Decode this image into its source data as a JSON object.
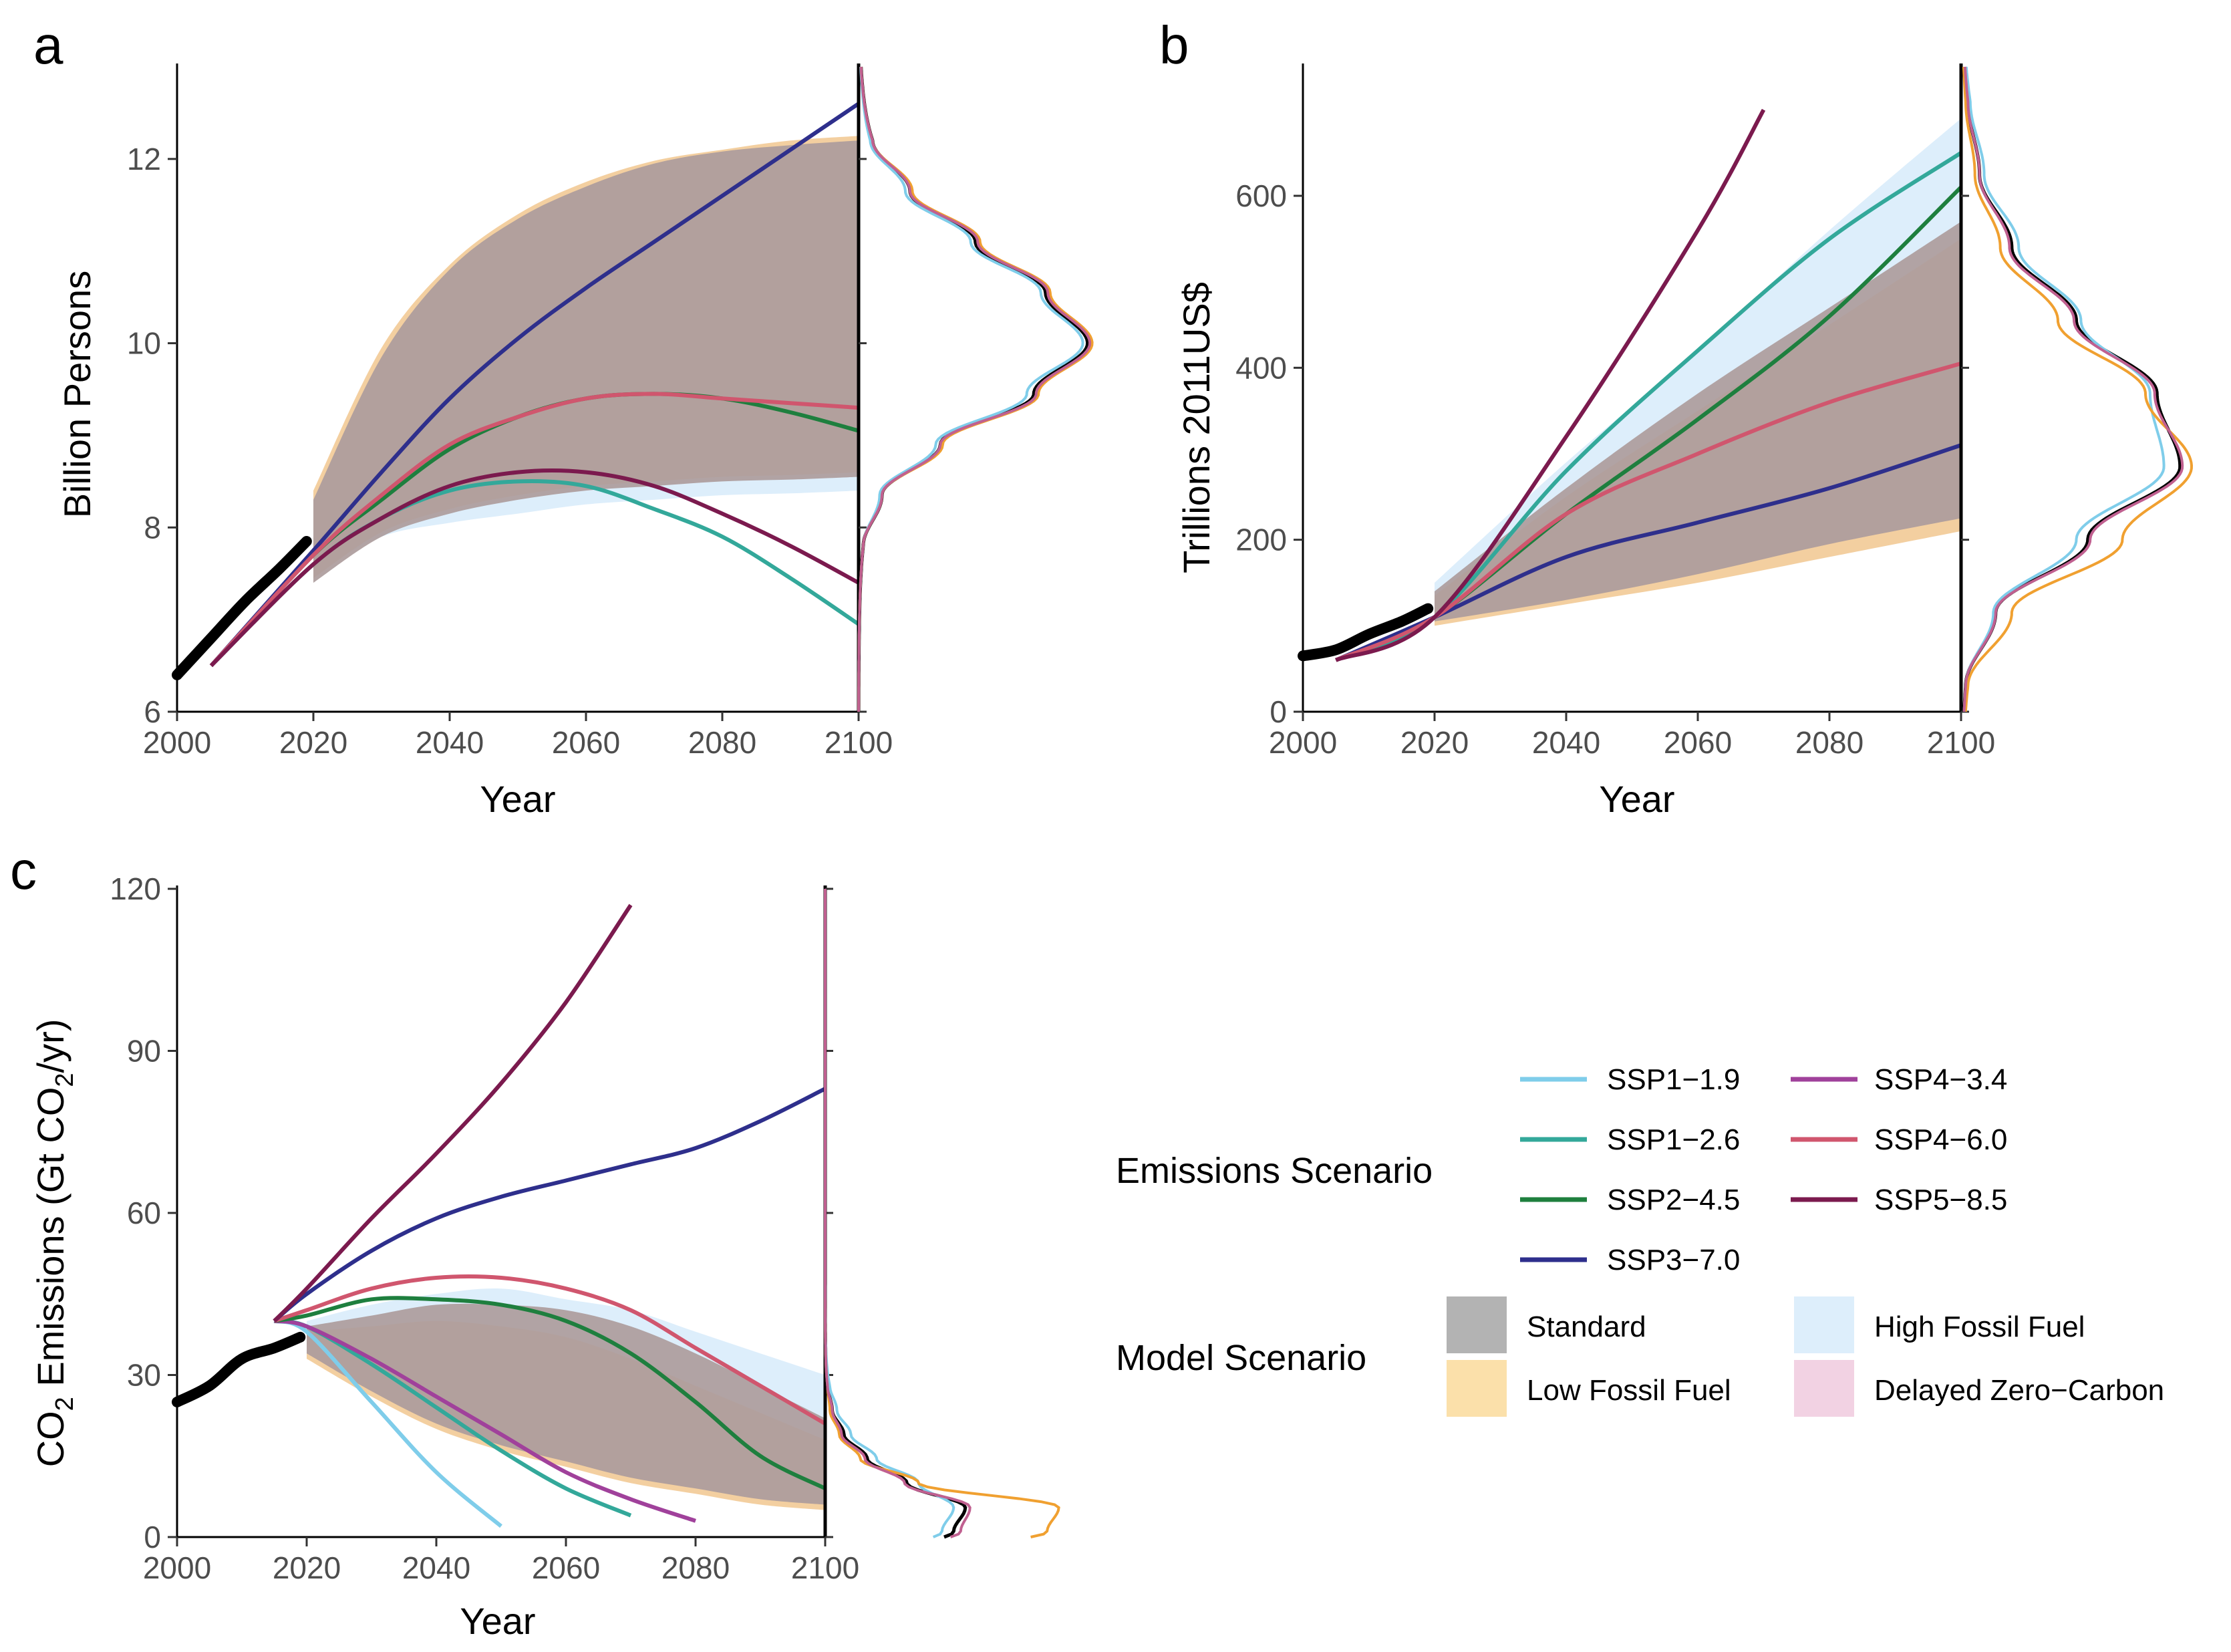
{
  "legend": {
    "emissions_title": "Emissions Scenario",
    "model_title": "Model Scenario",
    "ssp": [
      {
        "name": "SSP1−1.9",
        "color": "#7fcdea"
      },
      {
        "name": "SSP1−2.6",
        "color": "#33a89a"
      },
      {
        "name": "SSP2−4.5",
        "color": "#1e7f3e"
      },
      {
        "name": "SSP3−7.0",
        "color": "#2e2f8c"
      },
      {
        "name": "SSP4−3.4",
        "color": "#a0419b"
      },
      {
        "name": "SSP4−6.0",
        "color": "#d0566e"
      },
      {
        "name": "SSP5−8.5",
        "color": "#7b1a4e"
      }
    ],
    "model": [
      {
        "name": "Standard",
        "color": "#b3b3b3"
      },
      {
        "name": "High Fossil Fuel",
        "color": "#ddeefb"
      },
      {
        "name": "Low Fossil Fuel",
        "color": "#fbe0aa"
      },
      {
        "name": "Delayed Zero−Carbon",
        "color": "#f2d2e3"
      }
    ]
  },
  "chart_data": [
    {
      "panel": "a",
      "type": "line",
      "xlabel": "Year",
      "ylabel": "Billion Persons",
      "xlim": [
        2000,
        2100
      ],
      "ylim": [
        6,
        13
      ],
      "xticks": [
        "2000",
        "2020",
        "2040",
        "2060",
        "2080",
        "2100"
      ],
      "yticks": [
        "6",
        "8",
        "10",
        "12"
      ],
      "historical": {
        "x": [
          2000,
          2005,
          2010,
          2015,
          2019
        ],
        "y": [
          6.4,
          6.8,
          7.2,
          7.55,
          7.85
        ]
      },
      "bands": [
        {
          "scenario": "High Fossil Fuel",
          "color": "#ddeefb",
          "x": [
            2020,
            2030,
            2040,
            2050,
            2060,
            2070,
            2080,
            2090,
            2100
          ],
          "lower": [
            7.5,
            7.9,
            8.05,
            8.15,
            8.25,
            8.3,
            8.35,
            8.37,
            8.4
          ],
          "upper": [
            8.2,
            9.8,
            10.75,
            11.3,
            11.65,
            11.9,
            12.05,
            12.15,
            12.2
          ]
        },
        {
          "scenario": "Low Fossil Fuel",
          "color": "#f3cfa0",
          "x": [
            2020,
            2030,
            2040,
            2050,
            2060,
            2070,
            2080,
            2090,
            2100
          ],
          "lower": [
            7.45,
            7.95,
            8.2,
            8.35,
            8.45,
            8.5,
            8.55,
            8.57,
            8.6
          ],
          "upper": [
            8.4,
            9.95,
            10.85,
            11.4,
            11.75,
            11.98,
            12.1,
            12.2,
            12.25
          ]
        },
        {
          "scenario": "Standard",
          "color": "#ad9c9c",
          "x": [
            2020,
            2030,
            2040,
            2050,
            2060,
            2070,
            2080,
            2090,
            2100
          ],
          "lower": [
            7.4,
            7.9,
            8.15,
            8.3,
            8.4,
            8.45,
            8.5,
            8.52,
            8.55
          ],
          "upper": [
            8.3,
            9.85,
            10.8,
            11.35,
            11.7,
            11.95,
            12.08,
            12.15,
            12.2
          ]
        }
      ],
      "series": [
        {
          "name": "SSP1−2.6",
          "color": "#33a89a",
          "x": [
            2005,
            2020,
            2030,
            2040,
            2050,
            2060,
            2070,
            2080,
            2090,
            2100
          ],
          "y": [
            6.5,
            7.6,
            8.1,
            8.4,
            8.5,
            8.45,
            8.2,
            7.9,
            7.45,
            6.95
          ]
        },
        {
          "name": "SSP2−4.5",
          "color": "#1e7f3e",
          "x": [
            2005,
            2020,
            2030,
            2040,
            2050,
            2060,
            2070,
            2080,
            2090,
            2100
          ],
          "y": [
            6.5,
            7.7,
            8.3,
            8.85,
            9.2,
            9.4,
            9.45,
            9.4,
            9.25,
            9.05
          ]
        },
        {
          "name": "SSP3−7.0",
          "color": "#2e2f8c",
          "x": [
            2005,
            2020,
            2030,
            2040,
            2050,
            2060,
            2070,
            2080,
            2090,
            2100
          ],
          "y": [
            6.5,
            7.75,
            8.6,
            9.4,
            10.05,
            10.6,
            11.1,
            11.6,
            12.1,
            12.6
          ]
        },
        {
          "name": "SSP4−6.0",
          "color": "#d0566e",
          "x": [
            2005,
            2020,
            2030,
            2040,
            2050,
            2060,
            2070,
            2080,
            2090,
            2100
          ],
          "y": [
            6.5,
            7.7,
            8.35,
            8.9,
            9.2,
            9.4,
            9.45,
            9.4,
            9.35,
            9.3
          ]
        },
        {
          "name": "SSP5−8.5",
          "color": "#7b1a4e",
          "x": [
            2005,
            2020,
            2030,
            2040,
            2050,
            2060,
            2070,
            2080,
            2090,
            2100
          ],
          "y": [
            6.5,
            7.6,
            8.1,
            8.45,
            8.6,
            8.6,
            8.45,
            8.15,
            7.8,
            7.4
          ]
        }
      ],
      "marginal": {
        "peak_y": 10.0,
        "peak_width": 0.55,
        "curves": [
          {
            "name": "Standard",
            "color": "#000000",
            "density": [
              0.02,
              0.1,
              0.35,
              0.75,
              0.98,
              0.8,
              0.5,
              0.22,
              0.06
            ]
          },
          {
            "name": "High Fossil Fuel",
            "color": "#7fcdea",
            "density": [
              0.02,
              0.09,
              0.33,
              0.72,
              0.96,
              0.78,
              0.48,
              0.2,
              0.05
            ]
          },
          {
            "name": "Low Fossil Fuel",
            "color": "#f0a030",
            "density": [
              0.02,
              0.1,
              0.36,
              0.77,
              1.0,
              0.82,
              0.52,
              0.23,
              0.06
            ]
          },
          {
            "name": "Delayed Zero−Carbon",
            "color": "#c06090",
            "density": [
              0.02,
              0.1,
              0.35,
              0.76,
              0.99,
              0.81,
              0.51,
              0.22,
              0.06
            ]
          }
        ]
      }
    },
    {
      "panel": "b",
      "type": "line",
      "xlabel": "Year",
      "ylabel": "Trillions 2011US$",
      "xlim": [
        2000,
        2100
      ],
      "ylim": [
        0,
        750
      ],
      "xticks": [
        "2000",
        "2020",
        "2040",
        "2060",
        "2080",
        "2100"
      ],
      "yticks": [
        "0",
        "200",
        "400",
        "600"
      ],
      "historical": {
        "x": [
          2000,
          2005,
          2010,
          2015,
          2019
        ],
        "y": [
          65,
          72,
          90,
          105,
          120
        ]
      },
      "bands": [
        {
          "scenario": "High Fossil Fuel",
          "color": "#ddeefb",
          "x": [
            2020,
            2040,
            2060,
            2080,
            2100
          ],
          "lower": [
            110,
            140,
            170,
            200,
            230
          ],
          "upper": [
            150,
            290,
            420,
            560,
            690
          ]
        },
        {
          "scenario": "Low Fossil Fuel",
          "color": "#f3cfa0",
          "x": [
            2020,
            2040,
            2060,
            2080,
            2100
          ],
          "lower": [
            100,
            125,
            150,
            180,
            210
          ],
          "upper": [
            135,
            250,
            350,
            450,
            550
          ]
        },
        {
          "scenario": "Standard",
          "color": "#ad9c9c",
          "x": [
            2020,
            2040,
            2060,
            2080,
            2100
          ],
          "lower": [
            105,
            130,
            160,
            195,
            225
          ],
          "upper": [
            140,
            260,
            370,
            470,
            570
          ]
        }
      ],
      "series": [
        {
          "name": "SSP1−2.6",
          "color": "#33a89a",
          "x": [
            2005,
            2020,
            2040,
            2060,
            2080,
            2100
          ],
          "y": [
            60,
            110,
            280,
            420,
            550,
            650
          ]
        },
        {
          "name": "SSP2−4.5",
          "color": "#1e7f3e",
          "x": [
            2005,
            2020,
            2040,
            2060,
            2080,
            2100
          ],
          "y": [
            60,
            110,
            230,
            340,
            460,
            610
          ]
        },
        {
          "name": "SSP3−7.0",
          "color": "#2e2f8c",
          "x": [
            2005,
            2020,
            2040,
            2060,
            2080,
            2100
          ],
          "y": [
            60,
            110,
            180,
            220,
            260,
            310
          ]
        },
        {
          "name": "SSP4−6.0",
          "color": "#d0566e",
          "x": [
            2005,
            2020,
            2040,
            2060,
            2080,
            2100
          ],
          "y": [
            60,
            110,
            230,
            300,
            360,
            405
          ]
        },
        {
          "name": "SSP5−8.5",
          "color": "#7b1a4e",
          "x": [
            2005,
            2020,
            2040,
            2060,
            2070
          ],
          "y": [
            60,
            110,
            320,
            560,
            700
          ]
        }
      ],
      "marginal": {
        "peak_y": 370,
        "peak_width": 85,
        "curves": [
          {
            "name": "Standard",
            "color": "#000000",
            "density": [
              0.02,
              0.15,
              0.55,
              0.95,
              0.85,
              0.5,
              0.22,
              0.08,
              0.03
            ]
          },
          {
            "name": "High Fossil Fuel",
            "color": "#7fcdea",
            "density": [
              0.02,
              0.14,
              0.5,
              0.88,
              0.82,
              0.52,
              0.25,
              0.1,
              0.04
            ]
          },
          {
            "name": "Low Fossil Fuel",
            "color": "#f0a030",
            "density": [
              0.03,
              0.22,
              0.7,
              1.0,
              0.8,
              0.42,
              0.17,
              0.06,
              0.02
            ]
          },
          {
            "name": "Delayed Zero−Carbon",
            "color": "#c06090",
            "density": [
              0.02,
              0.15,
              0.56,
              0.96,
              0.84,
              0.49,
              0.21,
              0.08,
              0.03
            ]
          }
        ]
      }
    },
    {
      "panel": "c",
      "type": "line",
      "xlabel": "Year",
      "ylabel": "CO",
      "ylabel_sub": "2",
      "ylabel_rest": " Emissions (Gt CO",
      "ylabel_sub2": "2",
      "ylabel_end": "/yr)",
      "xlim": [
        2000,
        2100
      ],
      "ylim": [
        0,
        120
      ],
      "xticks": [
        "2000",
        "2020",
        "2040",
        "2060",
        "2080",
        "2100"
      ],
      "yticks": [
        "0",
        "30",
        "60",
        "90",
        "120"
      ],
      "historical": {
        "x": [
          2000,
          2005,
          2010,
          2015,
          2019
        ],
        "y": [
          25,
          28,
          33,
          35,
          37
        ]
      },
      "bands": [
        {
          "scenario": "High Fossil Fuel",
          "color": "#ddeefb",
          "x": [
            2020,
            2030,
            2040,
            2050,
            2060,
            2070,
            2080,
            2090,
            2100
          ],
          "lower": [
            34,
            27,
            21,
            17,
            14,
            11,
            9,
            7,
            6
          ],
          "upper": [
            40,
            43,
            45,
            46,
            44,
            42,
            38,
            34,
            30
          ]
        },
        {
          "scenario": "Low Fossil Fuel",
          "color": "#f3cfa0",
          "x": [
            2020,
            2030,
            2040,
            2050,
            2060,
            2070,
            2080,
            2090,
            2100
          ],
          "lower": [
            33,
            26,
            20,
            16,
            13,
            10,
            8,
            6,
            5
          ],
          "upper": [
            38,
            39,
            40,
            39,
            37,
            33,
            28,
            23,
            18
          ]
        },
        {
          "scenario": "Standard",
          "color": "#ad9c9c",
          "x": [
            2020,
            2030,
            2040,
            2050,
            2060,
            2070,
            2080,
            2090,
            2100
          ],
          "lower": [
            34,
            27,
            21,
            17,
            14,
            11,
            9,
            7,
            6
          ],
          "upper": [
            39,
            41,
            43,
            43,
            42,
            39,
            34,
            28,
            22
          ]
        }
      ],
      "series": [
        {
          "name": "SSP1−1.9",
          "color": "#7fcdea",
          "x": [
            2015,
            2020,
            2030,
            2040,
            2050
          ],
          "y": [
            40,
            38,
            25,
            12,
            2
          ]
        },
        {
          "name": "SSP1−2.6",
          "color": "#33a89a",
          "x": [
            2015,
            2020,
            2030,
            2040,
            2050,
            2060,
            2070
          ],
          "y": [
            40,
            39,
            32,
            24,
            16,
            9,
            4
          ]
        },
        {
          "name": "SSP4−3.4",
          "color": "#a0419b",
          "x": [
            2015,
            2020,
            2030,
            2040,
            2050,
            2060,
            2070,
            2080
          ],
          "y": [
            40,
            39,
            33,
            26,
            19,
            12,
            7,
            3
          ]
        },
        {
          "name": "SSP2−4.5",
          "color": "#1e7f3e",
          "x": [
            2015,
            2020,
            2030,
            2040,
            2050,
            2060,
            2070,
            2080,
            2090,
            2100
          ],
          "y": [
            40,
            41,
            44,
            44,
            43,
            40,
            34,
            25,
            15,
            9
          ]
        },
        {
          "name": "SSP4−6.0",
          "color": "#d0566e",
          "x": [
            2015,
            2020,
            2030,
            2040,
            2050,
            2060,
            2070,
            2080,
            2090,
            2100
          ],
          "y": [
            40,
            42,
            46,
            48,
            48,
            46,
            42,
            35,
            28,
            21
          ]
        },
        {
          "name": "SSP3−7.0",
          "color": "#2e2f8c",
          "x": [
            2015,
            2020,
            2030,
            2040,
            2050,
            2060,
            2070,
            2080,
            2090,
            2100
          ],
          "y": [
            40,
            45,
            53,
            59,
            63,
            66,
            69,
            72,
            77,
            83
          ]
        },
        {
          "name": "SSP5−8.5",
          "color": "#7b1a4e",
          "x": [
            2015,
            2020,
            2030,
            2040,
            2050,
            2060,
            2070
          ],
          "y": [
            40,
            46,
            59,
            71,
            84,
            99,
            117
          ]
        }
      ],
      "marginal": {
        "peak_y": 10,
        "peak_width": 4.5,
        "curves": [
          {
            "name": "Standard",
            "color": "#000000",
            "density": [
              0.05,
              0.2,
              0.55,
              0.6,
              0.35,
              0.18,
              0.08,
              0.03,
              0.01
            ]
          },
          {
            "name": "High Fossil Fuel",
            "color": "#7fcdea",
            "density": [
              0.04,
              0.18,
              0.5,
              0.55,
              0.4,
              0.22,
              0.11,
              0.05,
              0.02
            ]
          },
          {
            "name": "Low Fossil Fuel",
            "color": "#f0a030",
            "density": [
              0.08,
              0.35,
              0.95,
              1.0,
              0.4,
              0.15,
              0.06,
              0.02,
              0.01
            ]
          },
          {
            "name": "Delayed Zero−Carbon",
            "color": "#c06090",
            "density": [
              0.05,
              0.21,
              0.58,
              0.62,
              0.34,
              0.17,
              0.07,
              0.03,
              0.01
            ]
          }
        ]
      }
    }
  ]
}
